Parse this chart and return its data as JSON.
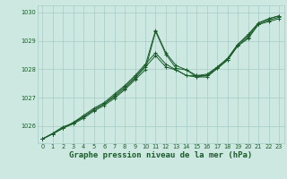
{
  "title": "Graphe pression niveau de la mer (hPa)",
  "xlabel_fontsize": 6.5,
  "background_color": "#cce8e0",
  "grid_color": "#a8ccc8",
  "line_color": "#1a5c2a",
  "xlim": [
    -0.5,
    23.5
  ],
  "ylim": [
    1025.4,
    1030.25
  ],
  "yticks": [
    1026,
    1027,
    1028,
    1029,
    1030
  ],
  "xticks": [
    0,
    1,
    2,
    3,
    4,
    5,
    6,
    7,
    8,
    9,
    10,
    11,
    12,
    13,
    14,
    15,
    16,
    17,
    18,
    19,
    20,
    21,
    22,
    23
  ],
  "series": [
    [
      1025.55,
      1025.75,
      1025.98,
      1026.1,
      1026.33,
      1026.58,
      1026.78,
      1027.03,
      1027.33,
      1027.68,
      1028.08,
      1028.48,
      1028.08,
      1027.98,
      1027.78,
      1027.73,
      1027.78,
      1028.03,
      1028.33,
      1028.83,
      1029.08,
      1029.58,
      1029.68,
      1029.78
    ],
    [
      1025.55,
      1025.73,
      1025.93,
      1026.08,
      1026.28,
      1026.53,
      1026.73,
      1026.98,
      1027.28,
      1027.63,
      1027.98,
      1029.33,
      1028.53,
      1028.03,
      1027.98,
      1027.73,
      1027.73,
      1028.03,
      1028.33,
      1028.83,
      1029.13,
      1029.58,
      1029.73,
      1029.83
    ],
    [
      1025.55,
      1025.73,
      1025.93,
      1026.13,
      1026.33,
      1026.58,
      1026.78,
      1027.08,
      1027.38,
      1027.73,
      1028.13,
      1029.38,
      1028.58,
      1028.13,
      1027.98,
      1027.78,
      1027.78,
      1028.08,
      1028.38,
      1028.88,
      1029.18,
      1029.63,
      1029.78,
      1029.88
    ],
    [
      1025.55,
      1025.73,
      1025.93,
      1026.13,
      1026.38,
      1026.63,
      1026.83,
      1027.13,
      1027.43,
      1027.78,
      1028.18,
      1028.58,
      1028.18,
      1027.98,
      1027.78,
      1027.78,
      1027.83,
      1028.08,
      1028.38,
      1028.88,
      1029.23,
      1029.63,
      1029.78,
      1029.88
    ]
  ]
}
